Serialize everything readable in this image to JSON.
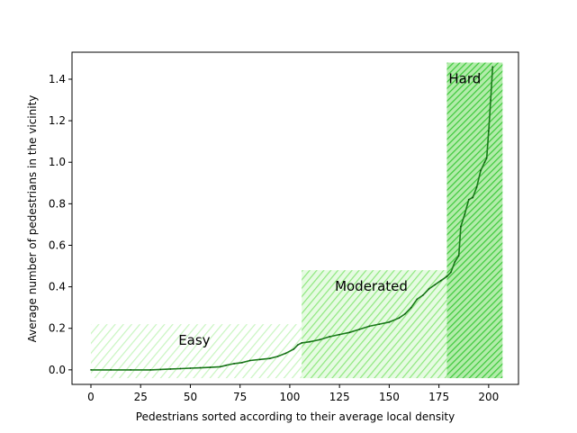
{
  "chart_data": {
    "type": "line",
    "title": "",
    "xlabel": "Pedestrians sorted according to their average local density",
    "ylabel": "Average number of pedestrians in the vicinity",
    "xlim": [
      -9.5,
      215
    ],
    "ylim": [
      -0.07,
      1.53
    ],
    "xticks": [
      0,
      25,
      50,
      75,
      100,
      125,
      150,
      175,
      200
    ],
    "yticks": [
      0.0,
      0.2,
      0.4,
      0.6,
      0.8,
      1.0,
      1.2,
      1.4
    ],
    "ytick_labels": [
      "0.0",
      "0.2",
      "0.4",
      "0.6",
      "0.8",
      "1.0",
      "1.2",
      "1.4"
    ],
    "grid": false,
    "line_color": "#1a7a1a",
    "series": [
      {
        "points": [
          [
            0,
            0.0
          ],
          [
            10,
            0.0
          ],
          [
            20,
            0.0
          ],
          [
            30,
            0.0
          ],
          [
            35,
            0.002
          ],
          [
            40,
            0.004
          ],
          [
            45,
            0.006
          ],
          [
            50,
            0.008
          ],
          [
            55,
            0.01
          ],
          [
            60,
            0.012
          ],
          [
            65,
            0.015
          ],
          [
            68,
            0.022
          ],
          [
            72,
            0.03
          ],
          [
            76,
            0.035
          ],
          [
            80,
            0.045
          ],
          [
            85,
            0.05
          ],
          [
            90,
            0.055
          ],
          [
            94,
            0.065
          ],
          [
            98,
            0.08
          ],
          [
            102,
            0.1
          ],
          [
            104,
            0.12
          ],
          [
            106,
            0.13
          ],
          [
            110,
            0.135
          ],
          [
            115,
            0.145
          ],
          [
            120,
            0.16
          ],
          [
            125,
            0.17
          ],
          [
            130,
            0.18
          ],
          [
            135,
            0.195
          ],
          [
            140,
            0.21
          ],
          [
            145,
            0.22
          ],
          [
            150,
            0.23
          ],
          [
            155,
            0.25
          ],
          [
            158,
            0.27
          ],
          [
            161,
            0.3
          ],
          [
            164,
            0.34
          ],
          [
            167,
            0.36
          ],
          [
            170,
            0.39
          ],
          [
            173,
            0.41
          ],
          [
            176,
            0.43
          ],
          [
            179,
            0.45
          ],
          [
            181,
            0.47
          ],
          [
            183,
            0.52
          ],
          [
            185,
            0.55
          ],
          [
            186,
            0.69
          ],
          [
            188,
            0.75
          ],
          [
            190,
            0.82
          ],
          [
            192,
            0.83
          ],
          [
            194,
            0.88
          ],
          [
            196,
            0.96
          ],
          [
            198,
            1.0
          ],
          [
            199,
            1.02
          ],
          [
            200,
            1.15
          ],
          [
            201,
            1.3
          ],
          [
            202,
            1.46
          ]
        ]
      }
    ],
    "regions": [
      {
        "label": "Easy",
        "x0": 0,
        "x1": 106,
        "y0": -0.04,
        "y1": 0.22,
        "color": "#c8f5c0",
        "label_x": 52,
        "label_y": 0.14
      },
      {
        "label": "Moderated",
        "x0": 106,
        "x1": 179,
        "y0": -0.04,
        "y1": 0.48,
        "color": "#8ee87e",
        "label_x": 141,
        "label_y": 0.4
      },
      {
        "label": "Hard",
        "x0": 179,
        "x1": 207,
        "y0": -0.04,
        "y1": 1.48,
        "color": "#3cc83a",
        "label_x": 188,
        "label_y": 1.4
      }
    ]
  }
}
